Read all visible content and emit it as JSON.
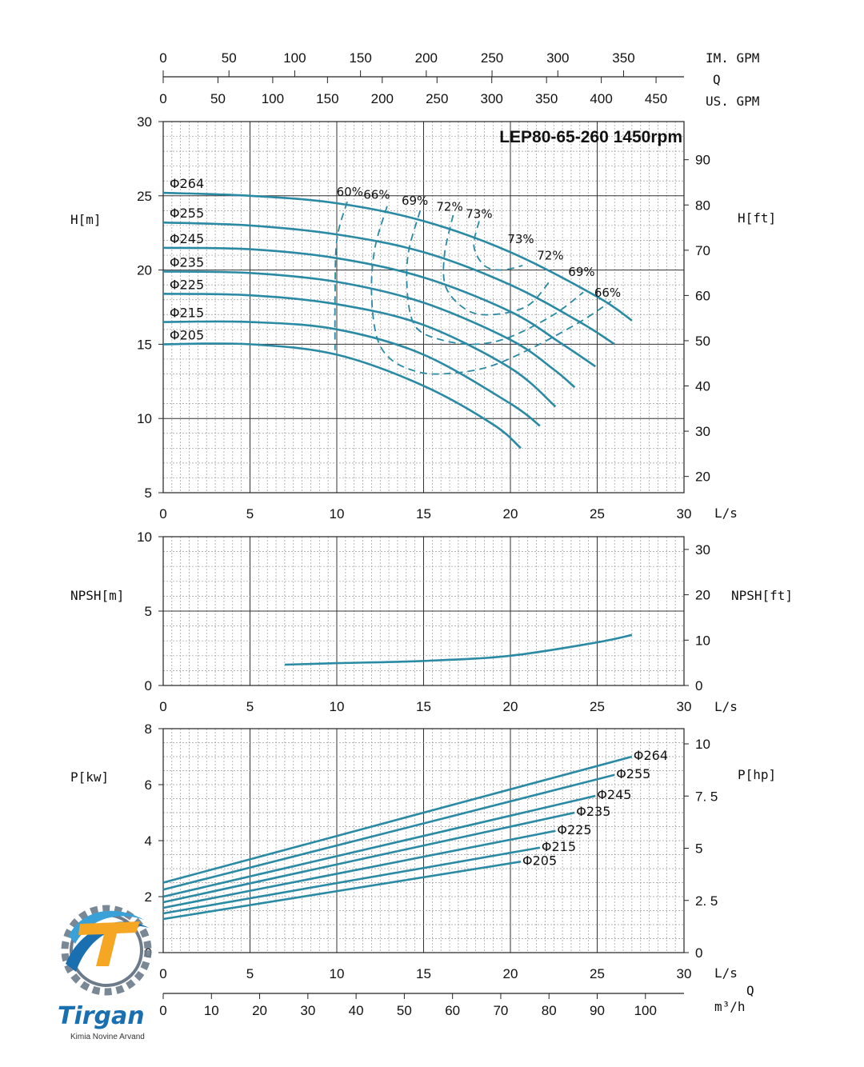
{
  "chart_data": {
    "type": "line",
    "title": "LEP80-65-260 1450rpm",
    "flow_axes": {
      "im_gpm": {
        "label": "IM. GPM",
        "ticks": [
          0,
          50,
          100,
          150,
          200,
          250,
          300,
          350
        ]
      },
      "q_label": "Q",
      "us_gpm": {
        "label": "US. GPM",
        "ticks": [
          0,
          50,
          100,
          150,
          200,
          250,
          300,
          350,
          400,
          450
        ]
      },
      "ls": {
        "label": "L/s",
        "ticks": [
          0,
          5,
          10,
          15,
          20,
          25,
          30
        ]
      },
      "m3h": {
        "label": "m³/h",
        "ticks": [
          0,
          10,
          20,
          30,
          40,
          50,
          60,
          70,
          80,
          90,
          100
        ],
        "q_label": "Q"
      }
    },
    "head_panel": {
      "ylabel_left": "H[m]",
      "ylabel_right": "H[ft]",
      "ylim": [
        5,
        30
      ],
      "yticks_left": [
        5,
        10,
        15,
        20,
        25,
        30
      ],
      "yticks_right": [
        20,
        30,
        40,
        50,
        60,
        70,
        80,
        90
      ],
      "series": [
        {
          "name": "Φ264",
          "x": [
            0,
            5,
            10,
            15,
            20,
            25,
            27
          ],
          "y": [
            25.2,
            25.0,
            24.5,
            23.3,
            21.2,
            18.2,
            16.6
          ]
        },
        {
          "name": "Φ255",
          "x": [
            0,
            5,
            10,
            15,
            20,
            24,
            26
          ],
          "y": [
            23.2,
            23.0,
            22.4,
            21.2,
            19.0,
            16.5,
            15.0
          ]
        },
        {
          "name": "Φ245",
          "x": [
            0,
            5,
            10,
            15,
            20,
            23,
            24.9
          ],
          "y": [
            21.5,
            21.4,
            20.8,
            19.5,
            17.2,
            15.0,
            13.5
          ]
        },
        {
          "name": "Φ235",
          "x": [
            0,
            5,
            10,
            15,
            20,
            22.5,
            23.7
          ],
          "y": [
            19.9,
            19.8,
            19.2,
            17.8,
            15.3,
            13.3,
            12.1
          ]
        },
        {
          "name": "Φ225",
          "x": [
            0,
            5,
            10,
            15,
            20,
            22.6
          ],
          "y": [
            18.4,
            18.3,
            17.7,
            16.3,
            13.4,
            10.8
          ]
        },
        {
          "name": "Φ215",
          "x": [
            0,
            5,
            10,
            15,
            20,
            21.7
          ],
          "y": [
            16.5,
            16.5,
            16.0,
            14.3,
            11.0,
            9.5
          ]
        },
        {
          "name": "Φ205",
          "x": [
            0,
            5,
            10,
            15,
            19,
            20.6
          ],
          "y": [
            15.0,
            15.0,
            14.3,
            12.2,
            9.6,
            8.0
          ]
        }
      ],
      "efficiency": [
        {
          "label": "60%",
          "x": [
            10.6,
            10.0,
            9.9,
            9.9
          ],
          "y": [
            24.6,
            22.0,
            18.0,
            14.6
          ]
        },
        {
          "label": "66%",
          "x": [
            12.9,
            12.2,
            12.0,
            12.3,
            13.1,
            14.5,
            16.0,
            18.5,
            21.0,
            24.0,
            25.8
          ],
          "y": [
            24.3,
            21.5,
            18.5,
            15.5,
            14.0,
            13.2,
            13.0,
            13.4,
            14.6,
            16.5,
            17.9
          ]
        },
        {
          "label": "69%",
          "x": [
            14.8,
            14.1,
            14.1,
            14.6,
            16.0,
            18.0,
            20.0,
            22.5,
            24.2
          ],
          "y": [
            24.0,
            21.0,
            18.0,
            16.1,
            15.3,
            15.0,
            15.5,
            17.0,
            18.5
          ]
        },
        {
          "label": "72%",
          "x": [
            16.7,
            16.2,
            16.3,
            17.5,
            19.0,
            21.0,
            22.3
          ],
          "y": [
            23.7,
            21.0,
            18.8,
            17.3,
            17.0,
            17.6,
            19.3
          ]
        },
        {
          "label": "73%",
          "x": [
            18.2,
            17.9,
            18.5,
            19.5,
            20.7
          ],
          "y": [
            23.3,
            21.6,
            20.3,
            20.0,
            20.3
          ]
        }
      ],
      "efficiency_labels": [
        {
          "text": "60%",
          "x": 10.75,
          "y": 25.0
        },
        {
          "text": "66%",
          "x": 12.3,
          "y": 24.8
        },
        {
          "text": "69%",
          "x": 14.5,
          "y": 24.4
        },
        {
          "text": "72%",
          "x": 16.5,
          "y": 24.0
        },
        {
          "text": "73%",
          "x": 18.2,
          "y": 23.5
        },
        {
          "text": "73%",
          "x": 20.6,
          "y": 21.8
        },
        {
          "text": "72%",
          "x": 22.3,
          "y": 20.7
        },
        {
          "text": "69%",
          "x": 24.1,
          "y": 19.6
        },
        {
          "text": "66%",
          "x": 25.6,
          "y": 18.2
        }
      ]
    },
    "npsh_panel": {
      "ylabel_left": "NPSH[m]",
      "ylabel_right": "NPSH[ft]",
      "ylim": [
        0,
        10
      ],
      "yticks_left": [
        0,
        5,
        10
      ],
      "yticks_right": [
        0,
        10,
        20,
        30
      ],
      "series": [
        {
          "name": "NPSH",
          "x": [
            7,
            10,
            15,
            20,
            25,
            27
          ],
          "y": [
            1.4,
            1.5,
            1.65,
            2.0,
            2.9,
            3.4
          ]
        }
      ]
    },
    "power_panel": {
      "ylabel_left": "P[kw]",
      "ylabel_right": "P[hp]",
      "ylim": [
        0,
        8
      ],
      "yticks_left": [
        0,
        2,
        4,
        6,
        8
      ],
      "yticks_right": [
        "0",
        "2. 5",
        "5",
        "7. 5",
        "10"
      ],
      "series": [
        {
          "name": "Φ264",
          "x": [
            0,
            27
          ],
          "y": [
            2.5,
            7.0
          ]
        },
        {
          "name": "Φ255",
          "x": [
            0,
            26
          ],
          "y": [
            2.25,
            6.35
          ]
        },
        {
          "name": "Φ245",
          "x": [
            0,
            24.9
          ],
          "y": [
            2.0,
            5.6
          ]
        },
        {
          "name": "Φ235",
          "x": [
            0,
            23.7
          ],
          "y": [
            1.8,
            5.0
          ]
        },
        {
          "name": "Φ225",
          "x": [
            0,
            22.6
          ],
          "y": [
            1.6,
            4.35
          ]
        },
        {
          "name": "Φ215",
          "x": [
            0,
            21.7
          ],
          "y": [
            1.4,
            3.75
          ]
        },
        {
          "name": "Φ205",
          "x": [
            0,
            20.6
          ],
          "y": [
            1.2,
            3.25
          ]
        }
      ]
    }
  },
  "logo": {
    "name": "Tirgan",
    "subtitle": "Kimia Novine Arvand",
    "colors": {
      "primary": "#1a6fb0",
      "accent": "#f5a623",
      "gear": "#6c7a89"
    }
  },
  "colors": {
    "curve": "#2a8aa4",
    "grid": "#888888",
    "major_grid": "#333333"
  }
}
